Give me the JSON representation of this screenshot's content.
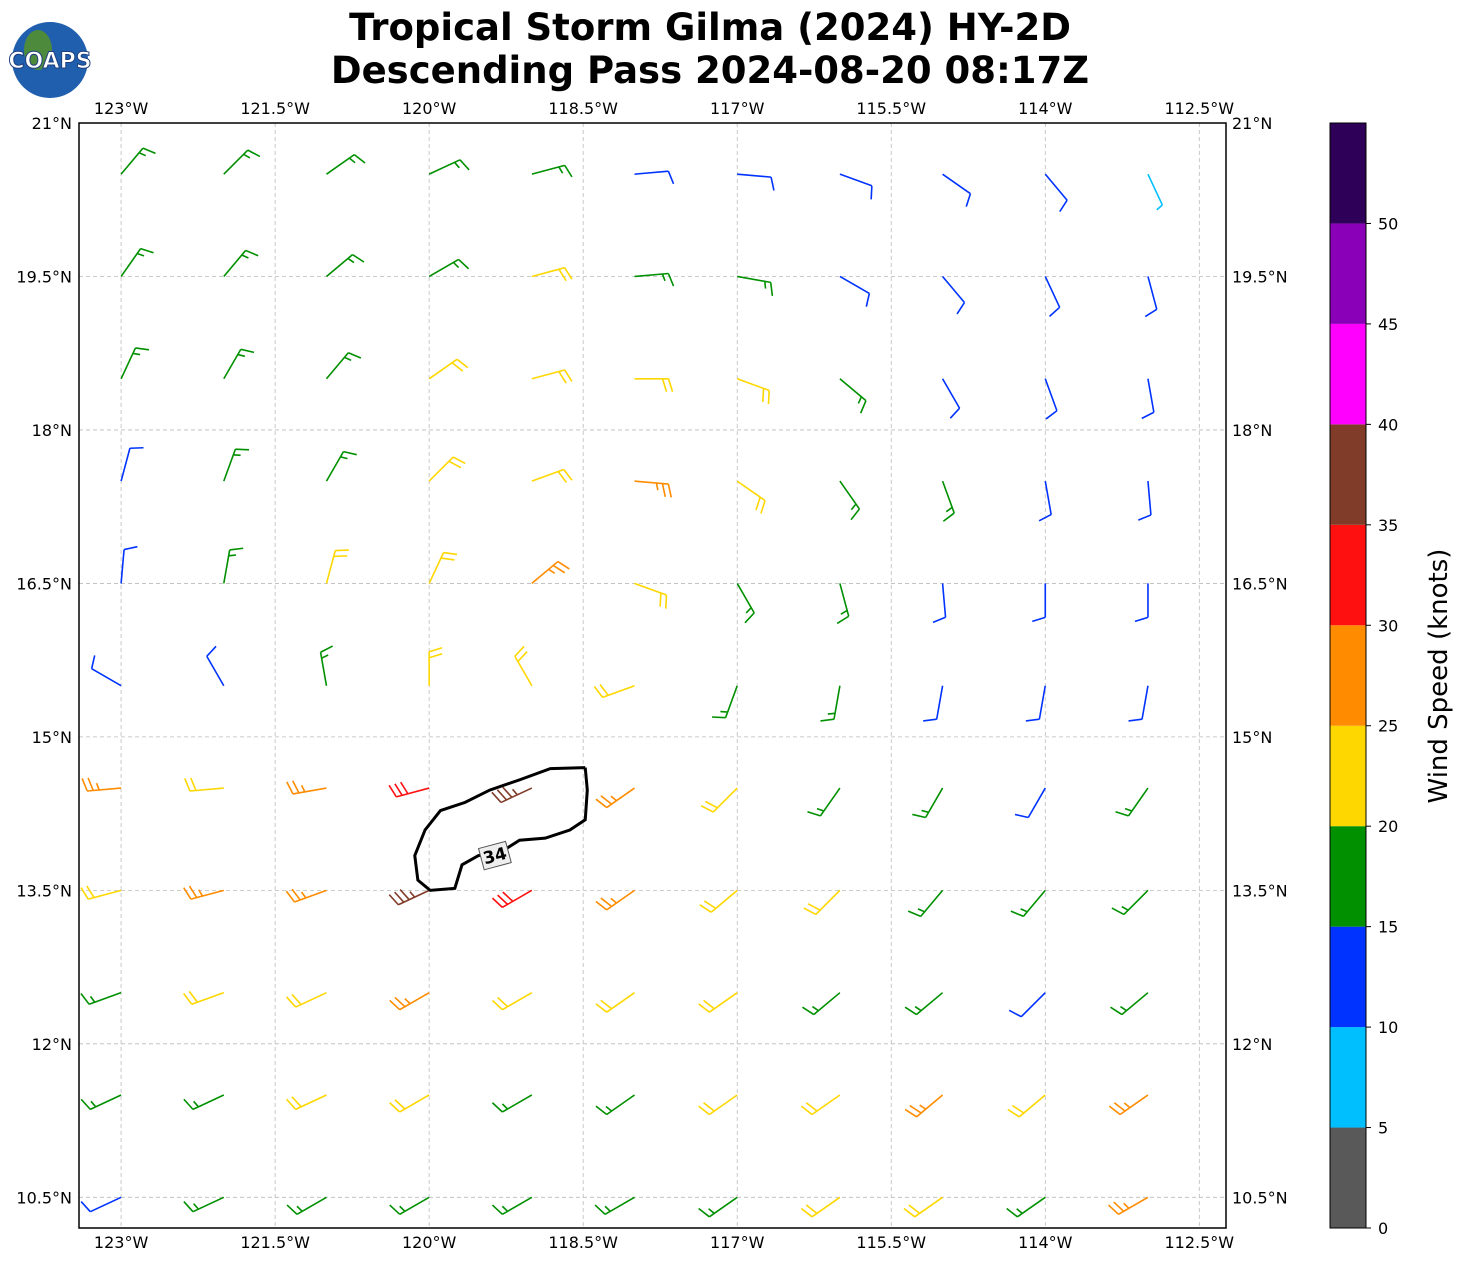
{
  "title": "Tropical Storm Gilma (2024) HY-2D",
  "subtitle": "Descending Pass 2024-08-20 08:17Z",
  "logo": "COAPS",
  "map": {
    "xlim": [
      -123.41,
      -112.24
    ],
    "ylim": [
      10.2,
      21
    ],
    "xticks": [
      {
        "value": -123,
        "label": "123°W"
      },
      {
        "value": -121.5,
        "label": "121.5°W"
      },
      {
        "value": -120,
        "label": "120°W"
      },
      {
        "value": -118.5,
        "label": "118.5°W"
      },
      {
        "value": -117,
        "label": "117°W"
      },
      {
        "value": -115.5,
        "label": "115.5°W"
      },
      {
        "value": -114,
        "label": "114°W"
      },
      {
        "value": -112.5,
        "label": "112.5°W"
      }
    ],
    "yticks": [
      {
        "value": 21,
        "label": "21°N"
      },
      {
        "value": 19.5,
        "label": "19.5°N"
      },
      {
        "value": 18,
        "label": "18°N"
      },
      {
        "value": 16.5,
        "label": "16.5°N"
      },
      {
        "value": 15,
        "label": "15°N"
      },
      {
        "value": 13.5,
        "label": "13.5°N"
      },
      {
        "value": 12,
        "label": "12°N"
      },
      {
        "value": 10.5,
        "label": "10.5°N"
      }
    ],
    "grid": true
  },
  "colorbar": {
    "label": "Wind Speed (knots)",
    "ylim": [
      0,
      55
    ],
    "bounds": [
      0,
      5,
      10,
      15,
      20,
      25,
      30,
      35,
      40,
      45,
      50,
      55
    ],
    "colors": [
      "#595959",
      "#00bfff",
      "#0033ff",
      "#009000",
      "#ffd700",
      "#ff8c00",
      "#ff1010",
      "#803c28",
      "#ff00ff",
      "#8a00b8",
      "#2e0058"
    ],
    "ticks": [
      0,
      5,
      10,
      15,
      20,
      25,
      30,
      35,
      40,
      45,
      50
    ]
  },
  "wind": {
    "lons": [
      -123,
      -122,
      -121,
      -120,
      -119,
      -118,
      -117,
      -116,
      -115,
      -114,
      -113
    ],
    "lats": [
      20.5,
      19.5,
      18.5,
      17.5,
      16.5,
      15.5,
      14.5,
      13.5,
      12.5,
      11.5,
      10.5
    ],
    "speed": [
      [
        17,
        17,
        17,
        17,
        16,
        13,
        12,
        12,
        12,
        12,
        8
      ],
      [
        17,
        17,
        18,
        19,
        20,
        17,
        15,
        12,
        12,
        11,
        10
      ],
      [
        16,
        17,
        18,
        22,
        23,
        23,
        21,
        18,
        14,
        12,
        11
      ],
      [
        14,
        16,
        18,
        21,
        24,
        27,
        22,
        18,
        16,
        13,
        11
      ],
      [
        13,
        15,
        21,
        22,
        26,
        23,
        19,
        17,
        14,
        12,
        11
      ],
      [
        11,
        13,
        17,
        21,
        22,
        22,
        18,
        15,
        13,
        13,
        12
      ],
      [
        26,
        24,
        28,
        32,
        37,
        28,
        22,
        19,
        15,
        14,
        16
      ],
      [
        23,
        27,
        29,
        35,
        33,
        27,
        23,
        20,
        18,
        15,
        17
      ],
      [
        18,
        22,
        24,
        27,
        24,
        22,
        21,
        18,
        17,
        14,
        18
      ],
      [
        17,
        18,
        21,
        22,
        19,
        18,
        21,
        23,
        26,
        24,
        26
      ],
      [
        13,
        16,
        17,
        18,
        17,
        18,
        17,
        21,
        22,
        18,
        26
      ]
    ],
    "direction": [
      [
        40,
        45,
        55,
        65,
        75,
        85,
        95,
        110,
        125,
        140,
        155
      ],
      [
        35,
        40,
        50,
        60,
        75,
        85,
        100,
        120,
        140,
        155,
        165
      ],
      [
        25,
        30,
        40,
        55,
        75,
        90,
        110,
        130,
        150,
        160,
        170
      ],
      [
        15,
        20,
        30,
        45,
        70,
        95,
        125,
        145,
        160,
        170,
        175
      ],
      [
        5,
        10,
        15,
        25,
        50,
        110,
        150,
        165,
        175,
        180,
        180
      ],
      [
        300,
        330,
        350,
        0,
        330,
        250,
        200,
        190,
        190,
        190,
        190
      ],
      [
        265,
        265,
        260,
        255,
        245,
        235,
        225,
        215,
        210,
        210,
        215
      ],
      [
        255,
        255,
        250,
        245,
        240,
        235,
        230,
        225,
        220,
        220,
        225
      ],
      [
        250,
        250,
        245,
        240,
        240,
        235,
        235,
        230,
        230,
        225,
        230
      ],
      [
        245,
        245,
        245,
        240,
        240,
        235,
        235,
        235,
        230,
        230,
        235
      ],
      [
        245,
        245,
        240,
        240,
        240,
        240,
        235,
        235,
        235,
        235,
        240
      ]
    ]
  },
  "contour": {
    "level": 34,
    "label_lon": -119.36,
    "label_lat": 13.84,
    "lons": [
      -118.48,
      -118.82,
      -119.12,
      -119.41,
      -119.65,
      -119.89,
      -120.04,
      -120.14,
      -120.11,
      -119.99,
      -119.75,
      -119.68,
      -119.52,
      -119.31,
      -119.12,
      -118.87,
      -118.63,
      -118.48,
      -118.46,
      -118.48
    ],
    "lats": [
      14.7,
      14.69,
      14.58,
      14.48,
      14.36,
      14.28,
      14.09,
      13.84,
      13.6,
      13.5,
      13.52,
      13.75,
      13.84,
      13.87,
      13.99,
      14.01,
      14.09,
      14.19,
      14.48,
      14.7
    ]
  }
}
